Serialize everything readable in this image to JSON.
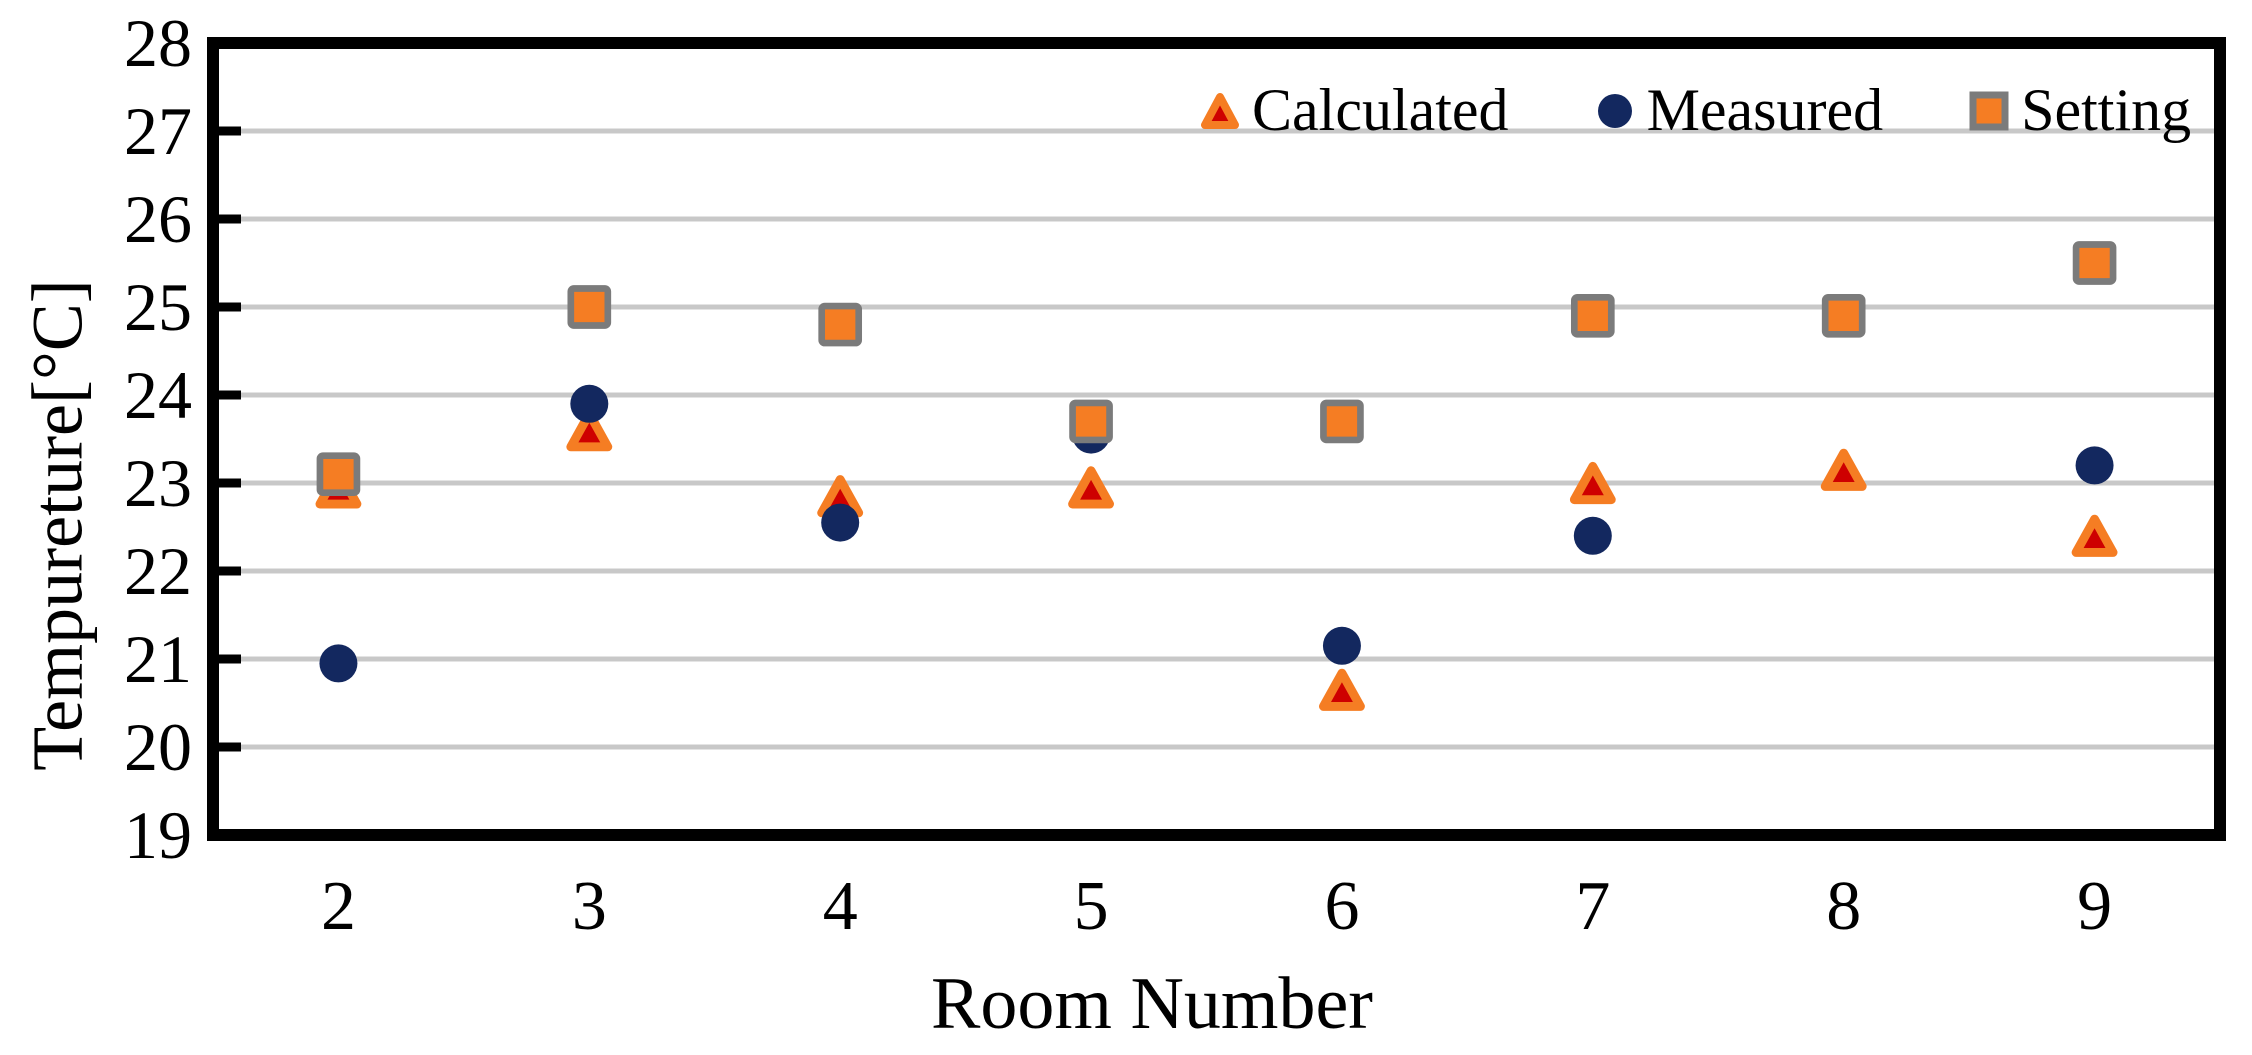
{
  "chart_data": {
    "type": "scatter",
    "title": "",
    "xlabel": "Room Number",
    "ylabel": "Tempureture[°C]",
    "categories": [
      "2",
      "3",
      "4",
      "5",
      "6",
      "7",
      "8",
      "9"
    ],
    "ylim": [
      19,
      28
    ],
    "yticks": [
      19,
      20,
      21,
      22,
      23,
      24,
      25,
      26,
      27,
      28
    ],
    "grid": "horizontal-gray-lines",
    "legend_position": "top-inside",
    "series": [
      {
        "name": "Calculated",
        "marker": "triangle",
        "fill": "#CE0000",
        "stroke": "#F57D23",
        "values": [
          22.95,
          23.6,
          22.85,
          22.95,
          20.65,
          23.0,
          23.15,
          22.4
        ]
      },
      {
        "name": "Measured",
        "marker": "circle",
        "fill": "#13285F",
        "stroke": "none",
        "values": [
          20.95,
          23.9,
          22.55,
          23.55,
          21.15,
          22.4,
          24.9,
          23.2
        ]
      },
      {
        "name": "Setting",
        "marker": "square",
        "fill": "#F57D23",
        "stroke": "#7B7B7B",
        "values": [
          23.1,
          25.0,
          24.8,
          23.7,
          23.7,
          24.9,
          24.9,
          25.5
        ]
      }
    ],
    "colors": {
      "background": "#FFFFFF",
      "axis": "#000000",
      "gridline": "#C8C8C8",
      "text": "#000000"
    }
  }
}
